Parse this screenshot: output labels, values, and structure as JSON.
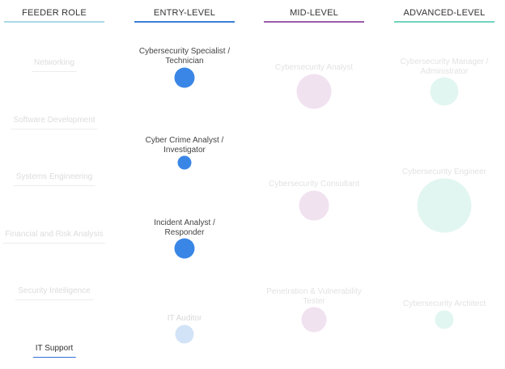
{
  "columns": [
    {
      "label": "FEEDER ROLE",
      "color": "#a9d8e6"
    },
    {
      "label": "ENTRY-LEVEL",
      "color": "#3a7fd8"
    },
    {
      "label": "MID-LEVEL",
      "color": "#9b5ca8"
    },
    {
      "label": "ADVANCED-LEVEL",
      "color": "#6fd4bd"
    }
  ],
  "feeder_roles": [
    {
      "label": "Networking",
      "active": false
    },
    {
      "label": "Software Development",
      "active": false
    },
    {
      "label": "Systems Engineering",
      "active": false
    },
    {
      "label": "Financial and Risk Analysis",
      "active": false
    },
    {
      "label": "Security Intelligence",
      "active": false
    },
    {
      "label": "IT Support",
      "active": true
    }
  ],
  "entry_roles": [
    {
      "line1": "Cybersecurity Specialist /",
      "line2": "Technician",
      "size": "medium",
      "active": true
    },
    {
      "line1": "Cyber Crime Analyst /",
      "line2": "Investigator",
      "size": "small",
      "active": true
    },
    {
      "line1": "Incident Analyst /",
      "line2": "Responder",
      "size": "medium",
      "active": true
    },
    {
      "line1": "IT Auditor",
      "line2": "",
      "size": "medium",
      "active": false
    }
  ],
  "mid_roles": [
    {
      "line1": "Cybersecurity Analyst",
      "line2": "",
      "size": "large"
    },
    {
      "line1": "Cybersecurity Consultant",
      "line2": "",
      "size": "medium"
    },
    {
      "line1": "Penetration & Vulnerability",
      "line2": "Tester",
      "size": "medium"
    }
  ],
  "advanced_roles": [
    {
      "line1": "Cybersecurity Manager /",
      "line2": "Administrator",
      "size": "medium"
    },
    {
      "line1": "Cybersecurity Engineer",
      "line2": "",
      "size": "xlarge"
    },
    {
      "line1": "Cybersecurity Architect",
      "line2": "",
      "size": "small"
    }
  ],
  "colors": {
    "entry_active": "#3a86e6",
    "entry_inactive": "#d3e3f7",
    "entry_text": "#444444",
    "entry_text_inactive": "#d8d8d8",
    "mid_bubble": "#f1e2f0",
    "mid_text": "#e2e2e2",
    "advanced_bubble": "#e2f6f1",
    "advanced_text": "#e2e2e2"
  }
}
